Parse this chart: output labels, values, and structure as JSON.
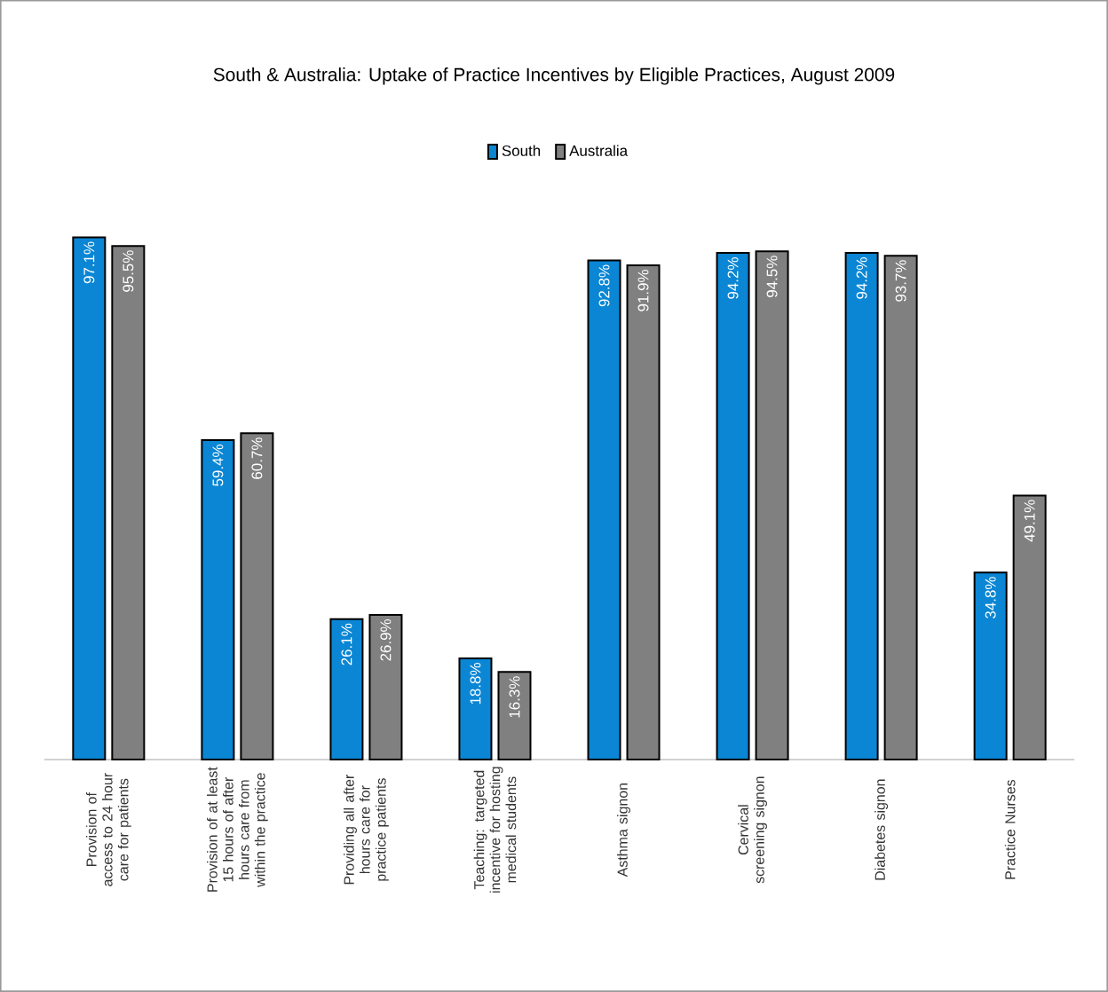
{
  "chart_data": {
    "type": "bar",
    "title": "South & Australia:  Uptake of Practice Incentives by Eligible Practices, August 2009",
    "categories": [
      "Provision of access to 24 hour care for patients",
      "Provision of at least 15 hours of after hours care from within the practice",
      "Providing all after hours care for practice patients",
      "Teaching: targeted incentive for hosting medical students",
      "Asthma signon",
      "Cervical screening signon",
      "Diabetes signon",
      "Practice Nurses"
    ],
    "series": [
      {
        "name": "South",
        "color": "#0a86d4",
        "values": [
          97.1,
          59.4,
          26.1,
          18.8,
          92.8,
          94.2,
          94.2,
          34.8
        ],
        "value_labels": [
          "97.1%",
          "59.4%",
          "26.1%",
          "18.8%",
          "92.8%",
          "94.2%",
          "94.2%",
          "34.8%"
        ]
      },
      {
        "name": "Australia",
        "color": "#808080",
        "values": [
          95.5,
          60.7,
          26.9,
          16.3,
          91.9,
          94.5,
          93.7,
          49.1
        ],
        "value_labels": [
          "95.5%",
          "60.7%",
          "26.9%",
          "16.3%",
          "91.9%",
          "94.5%",
          "93.7%",
          "49.1%"
        ]
      }
    ],
    "legend": "top"
  }
}
